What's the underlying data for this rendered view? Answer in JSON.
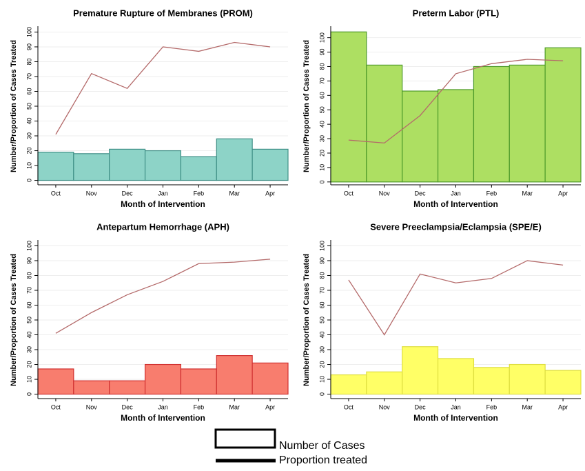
{
  "chart_data": [
    {
      "type": "bar_line",
      "title": "Premature Rupture of Membranes (PROM)",
      "x_label": "Month of Intervention",
      "y_label": "Number/Proportion of Cases Treated",
      "categories": [
        "Oct",
        "Nov",
        "Dec",
        "Jan",
        "Feb",
        "Mar",
        "Apr"
      ],
      "bars": {
        "values": [
          19,
          18,
          21,
          20,
          16,
          28,
          21
        ],
        "color": "#8dd3c7",
        "edge_color": "#3f8f86"
      },
      "line": {
        "values": [
          31,
          72,
          62,
          90,
          87,
          93,
          90
        ],
        "color": "#b46a6a"
      },
      "ylim": [
        -3,
        103
      ],
      "yticks": [
        0,
        10,
        20,
        30,
        40,
        50,
        60,
        70,
        80,
        90,
        100
      ],
      "grid": true
    },
    {
      "type": "bar_line",
      "title": "Preterm Labor  (PTL)",
      "x_label": "Month of Intervention",
      "y_label": "Number/Proportion of Cases Treated",
      "categories": [
        "Oct",
        "Nov",
        "Dec",
        "Jan",
        "Feb",
        "Mar",
        "Apr"
      ],
      "bars": {
        "values": [
          104,
          81,
          63,
          64,
          80,
          81,
          93
        ],
        "color": "#addf62",
        "edge_color": "#4e9a2a"
      },
      "line": {
        "values": [
          29,
          27,
          46,
          75,
          82,
          85,
          84
        ],
        "color": "#b46a6a"
      },
      "ylim": [
        -2,
        107
      ],
      "yticks": [
        0,
        10,
        20,
        30,
        40,
        50,
        60,
        70,
        80,
        90,
        100
      ],
      "grid": true
    },
    {
      "type": "bar_line",
      "title": "Antepartum Hemorrhage (APH)",
      "x_label": "Month of Intervention",
      "y_label": "Number/Proportion of Cases Treated",
      "categories": [
        "Oct",
        "Nov",
        "Dec",
        "Jan",
        "Feb",
        "Mar",
        "Apr"
      ],
      "bars": {
        "values": [
          17,
          9,
          9,
          20,
          17,
          26,
          21
        ],
        "color": "#f87d6e",
        "edge_color": "#d03030"
      },
      "line": {
        "values": [
          41,
          55,
          67,
          76,
          88,
          89,
          91
        ],
        "color": "#b46a6a"
      },
      "ylim": [
        -3,
        103
      ],
      "yticks": [
        0,
        10,
        20,
        30,
        40,
        50,
        60,
        70,
        80,
        90,
        100
      ],
      "grid": true
    },
    {
      "type": "bar_line",
      "title": "Severe Preeclampsia/Eclampsia  (SPE/E)",
      "x_label": "Month of Intervention",
      "y_label": "Number/Proportion of Cases Treated",
      "categories": [
        "Oct",
        "Nov",
        "Dec",
        "Jan",
        "Feb",
        "Mar",
        "Apr"
      ],
      "bars": {
        "values": [
          13,
          15,
          32,
          24,
          18,
          20,
          16
        ],
        "color": "#ffff66",
        "edge_color": "#dede40"
      },
      "line": {
        "values": [
          77,
          40,
          81,
          75,
          78,
          90,
          87
        ],
        "color": "#b46a6a"
      },
      "ylim": [
        -3,
        103
      ],
      "yticks": [
        0,
        10,
        20,
        30,
        40,
        50,
        60,
        70,
        80,
        90,
        100
      ],
      "grid": true
    }
  ],
  "legend": [
    "Number of Cases",
    "Proportion treated"
  ]
}
